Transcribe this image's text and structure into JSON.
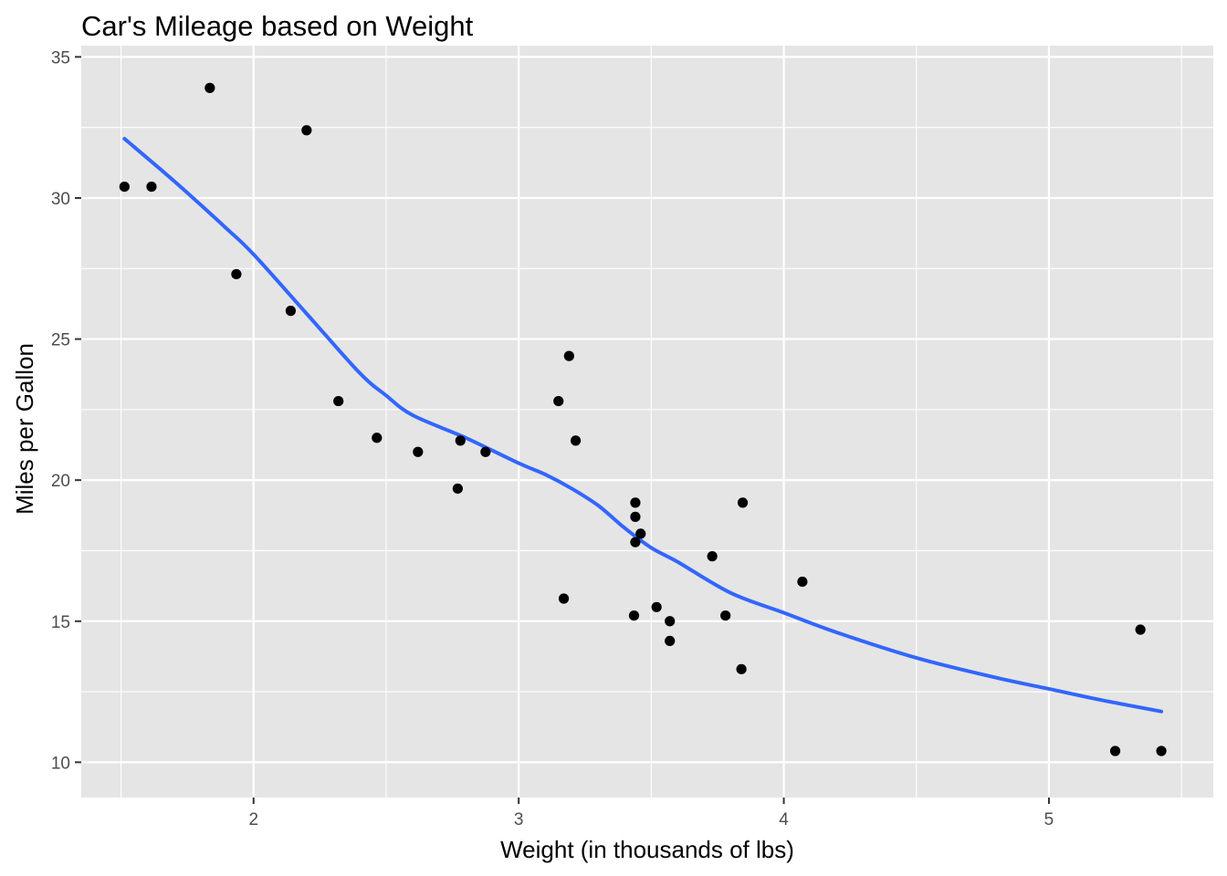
{
  "chart_data": {
    "type": "scatter",
    "title": "Car's Mileage based on Weight",
    "xlabel": "Weight (in thousands of lbs)",
    "ylabel": "Miles per Gallon",
    "xlim": [
      1.35,
      5.62
    ],
    "ylim": [
      8.75,
      35.4
    ],
    "x_ticks": [
      2,
      3,
      4,
      5
    ],
    "y_ticks": [
      10,
      15,
      20,
      25,
      30,
      35
    ],
    "x_minor": [
      1.5,
      2.5,
      3.5,
      4.5,
      5.5
    ],
    "y_minor": [
      12.5,
      17.5,
      22.5,
      27.5,
      32.5
    ],
    "grid": true,
    "colors": {
      "panel": "#e5e5e5",
      "grid": "#ffffff",
      "points": "#000000",
      "smooth": "#3366ff"
    },
    "series": [
      {
        "kind": "points",
        "x": [
          1.513,
          1.615,
          1.835,
          1.935,
          2.14,
          2.2,
          2.32,
          2.465,
          2.62,
          2.77,
          2.78,
          2.875,
          3.15,
          3.17,
          3.19,
          3.215,
          3.435,
          3.44,
          3.44,
          3.44,
          3.46,
          3.52,
          3.57,
          3.57,
          3.73,
          3.78,
          3.84,
          3.845,
          4.07,
          5.25,
          5.345,
          5.424
        ],
        "y": [
          30.4,
          30.4,
          33.9,
          27.3,
          26.0,
          32.4,
          22.8,
          21.5,
          21.0,
          19.7,
          21.4,
          21.0,
          22.8,
          15.8,
          24.4,
          21.4,
          15.2,
          17.8,
          18.7,
          19.2,
          18.1,
          15.5,
          15.0,
          14.3,
          17.3,
          15.2,
          13.3,
          19.2,
          16.4,
          10.4,
          14.7,
          10.4
        ]
      },
      {
        "kind": "smooth",
        "x": [
          1.513,
          1.7,
          1.9,
          2.0,
          2.2,
          2.4,
          2.5,
          2.6,
          2.8,
          3.0,
          3.1,
          3.2,
          3.3,
          3.4,
          3.5,
          3.6,
          3.8,
          4.0,
          4.2,
          4.5,
          4.8,
          5.0,
          5.2,
          5.424
        ],
        "y": [
          32.1,
          30.6,
          28.9,
          28.0,
          25.9,
          23.8,
          23.0,
          22.3,
          21.5,
          20.6,
          20.2,
          19.7,
          19.1,
          18.3,
          17.6,
          17.1,
          16.0,
          15.3,
          14.6,
          13.7,
          13.0,
          12.6,
          12.2,
          11.8
        ]
      }
    ]
  }
}
